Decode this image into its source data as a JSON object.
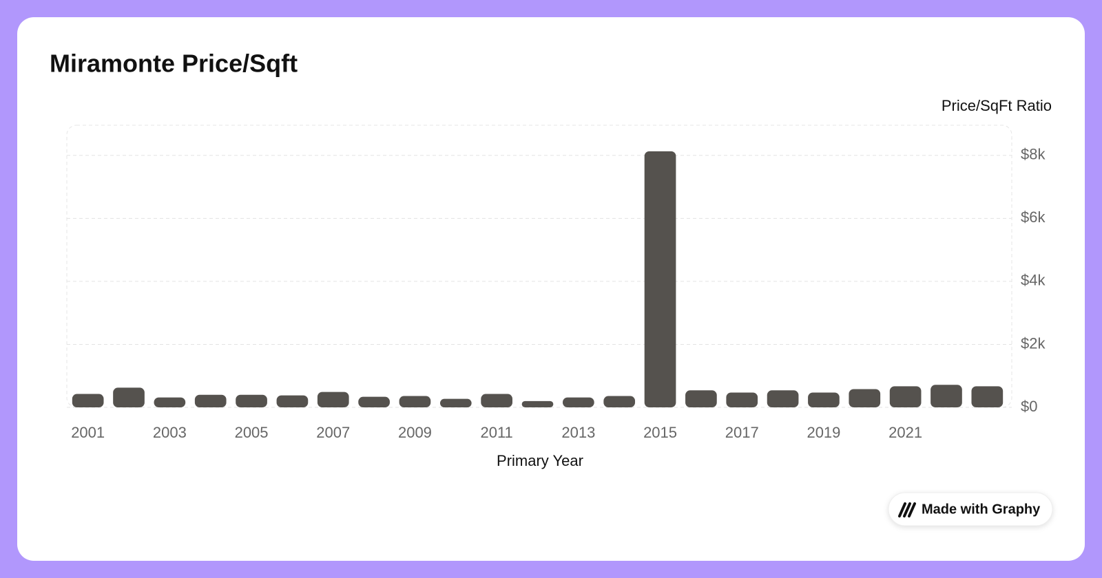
{
  "chart_data": {
    "type": "bar",
    "title": "Miramonte Price/Sqft",
    "y_axis_label": "Price/SqFt Ratio",
    "x_axis_label": "Primary Year",
    "categories": [
      "2001",
      null,
      "2003",
      null,
      "2005",
      null,
      "2007",
      null,
      "2009",
      null,
      "2011",
      null,
      "2013",
      null,
      "2015",
      null,
      "2017",
      null,
      "2019",
      null,
      "2021",
      null,
      null
    ],
    "values": [
      425,
      625,
      315,
      400,
      400,
      380,
      490,
      335,
      360,
      270,
      425,
      200,
      315,
      360,
      8130,
      540,
      470,
      540,
      470,
      580,
      670,
      715,
      670
    ],
    "color": "#55524e",
    "ylim": [
      0,
      9000
    ],
    "yticks": [
      {
        "value": 0,
        "label": "$0"
      },
      {
        "value": 2000,
        "label": "$2k"
      },
      {
        "value": 4000,
        "label": "$4k"
      },
      {
        "value": 6000,
        "label": "$6k"
      },
      {
        "value": 8000,
        "label": "$8k"
      }
    ],
    "grid": true
  },
  "footer": {
    "badge": "Made with Graphy"
  }
}
